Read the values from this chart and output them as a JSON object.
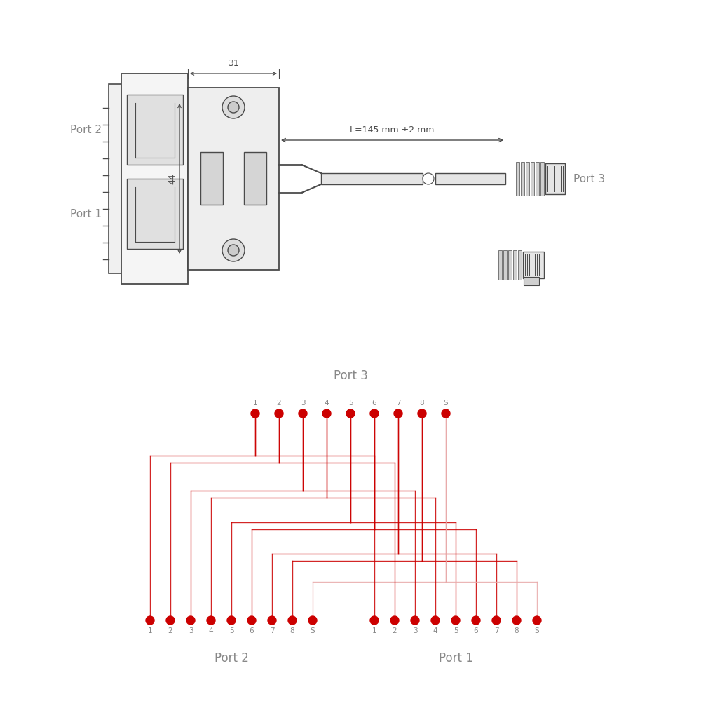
{
  "bg_color": "#ffffff",
  "line_color": "#4a4a4a",
  "red_color": "#cc0000",
  "red_light": "#e8aaaa",
  "dot_color": "#cc0000",
  "port_label_color": "#888888",
  "port3_labels": [
    "1",
    "2",
    "3",
    "4",
    "5",
    "6",
    "7",
    "8",
    "S"
  ],
  "port2_labels": [
    "1",
    "2",
    "3",
    "4",
    "5",
    "6",
    "7",
    "8",
    "S"
  ],
  "port1_labels": [
    "1",
    "2",
    "3",
    "4",
    "5",
    "6",
    "7",
    "8",
    "S"
  ],
  "dim_31": "31",
  "dim_44": "44",
  "dim_L": "L=145 mm ±2 mm",
  "port2_label": "Port 2",
  "port1_label": "Port 1",
  "port3_label": "Port 3"
}
